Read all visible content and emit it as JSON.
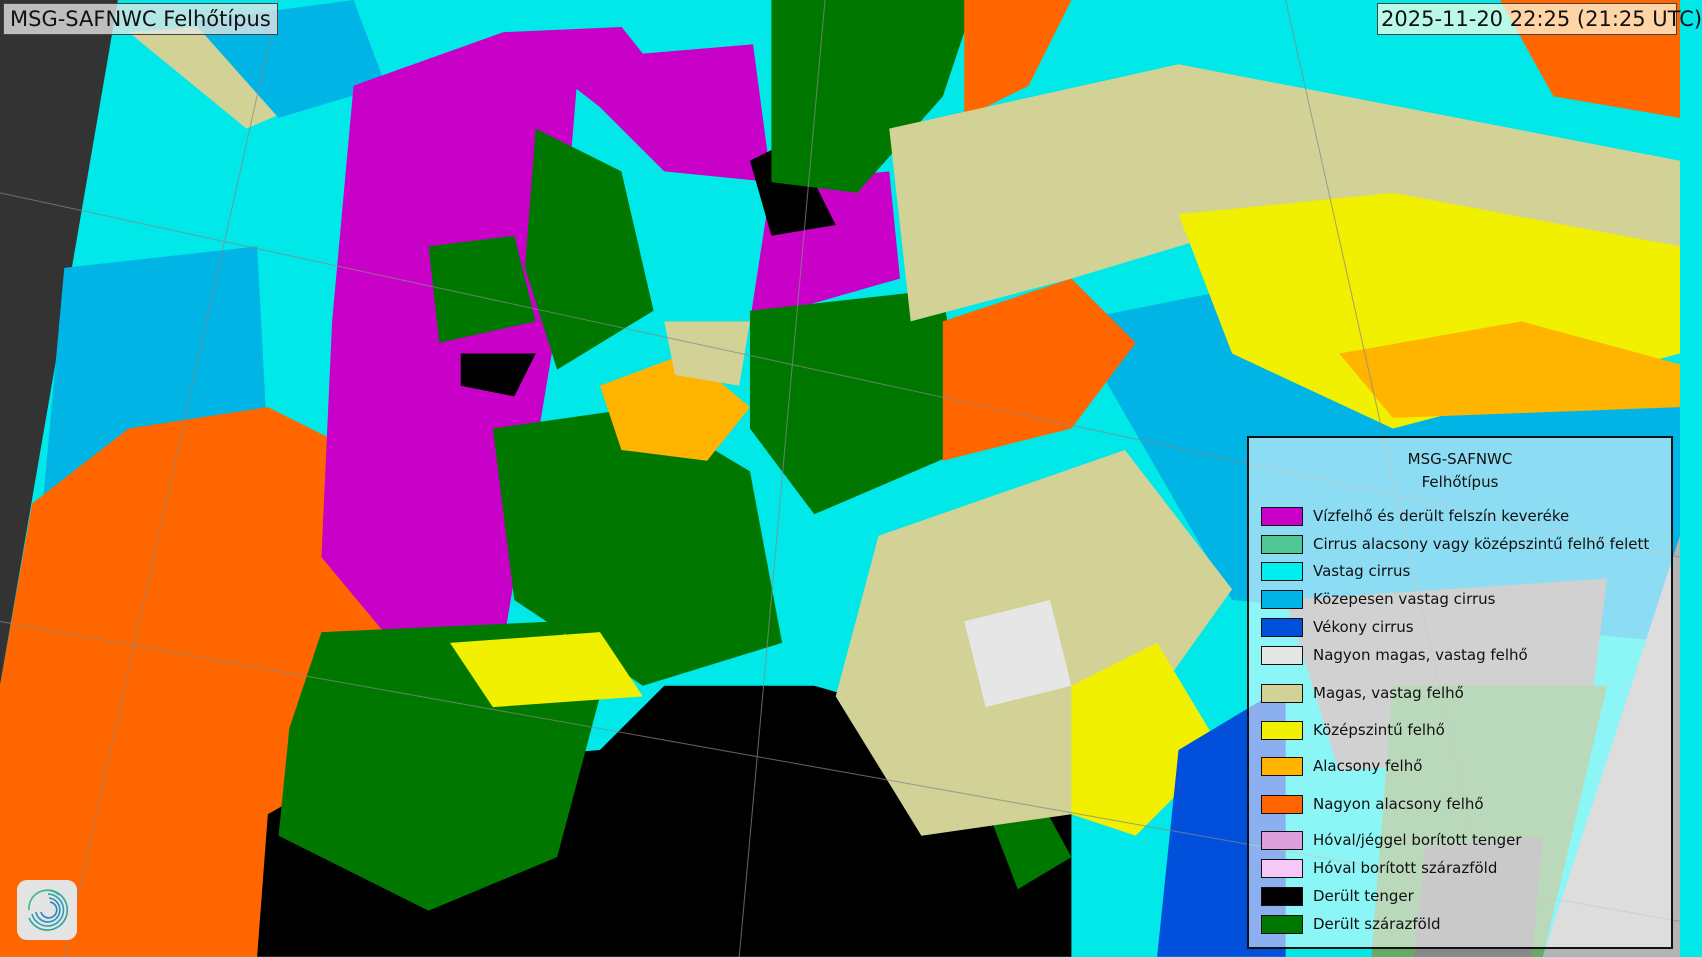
{
  "header": {
    "title": "MSG-SAFNWC Felhőtípus",
    "timestamp": "2025-11-20 22:25 (21:25 UTC)"
  },
  "legend": {
    "title_line1": "MSG-SAFNWC",
    "title_line2": "Felhőtípus",
    "items": [
      {
        "label": "Vízfelhő és derült felszín keveréke",
        "color": "#c800c8"
      },
      {
        "label": "Cirrus alacsony vagy középszintű felhő felett",
        "color": "#50c896"
      },
      {
        "label": "Vastag cirrus",
        "color": "#00f0f0"
      },
      {
        "label": "Közepesen vastag cirrus",
        "color": "#00b4e6"
      },
      {
        "label": "Vékony cirrus",
        "color": "#0050dc"
      },
      {
        "label": "Nagyon magas, vastag felhő",
        "color": "#e6e6e6"
      },
      {
        "label": "Magas, vastag felhő",
        "color": "#d2d296"
      },
      {
        "label": "Középszintű felhő",
        "color": "#f0f000"
      },
      {
        "label": "Alacsony felhő",
        "color": "#ffb400"
      },
      {
        "label": "Nagyon alacsony felhő",
        "color": "#ff6400"
      },
      {
        "label": "Hóval/jéggel borított tenger",
        "color": "#dca0dc"
      },
      {
        "label": "Hóval borított szárazföld",
        "color": "#f5c8f5"
      },
      {
        "label": "Derült tenger",
        "color": "#000000"
      },
      {
        "label": "Derült szárazföld",
        "color": "#007800"
      }
    ]
  },
  "colors": {
    "space": "#333333",
    "outside_disc": "#b4b4b4",
    "night_gray": "#999999"
  },
  "logo": {
    "icon": "swirl-logo-icon"
  }
}
